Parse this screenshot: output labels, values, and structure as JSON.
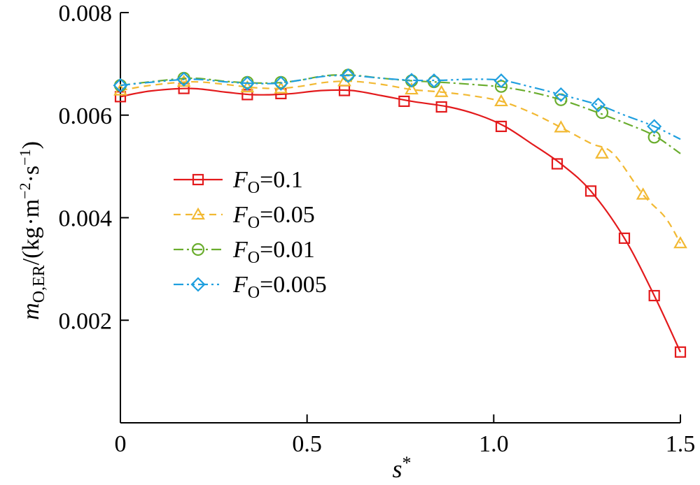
{
  "chart_data": {
    "type": "line",
    "xlabel": {
      "main": "s",
      "sup": "*"
    },
    "ylabel": {
      "main": "m",
      "sub": "O,ER",
      "unit_prefix": "/(kg",
      "m": "m",
      "exp1": "−2",
      "s": "s",
      "exp2": "−1",
      "close": ")"
    },
    "xlim": [
      0,
      1.5
    ],
    "ylim": [
      0,
      0.008
    ],
    "x_ticks": [
      0,
      0.5,
      1.0,
      1.5
    ],
    "x_tick_labels": [
      "0",
      "0.5",
      "1.0",
      "1.5"
    ],
    "y_ticks": [
      0.002,
      0.004,
      0.006,
      0.008
    ],
    "y_tick_labels": [
      "0.002",
      "0.004",
      "0.006",
      "0.008"
    ],
    "legend": {
      "placement": "center-left",
      "symbol": "F",
      "subscript": "O"
    },
    "series": [
      {
        "name": "=0.1",
        "color": "#e31a1c",
        "marker": "square",
        "dash": "solid",
        "curve_x": [
          0.0,
          0.08,
          0.19,
          0.28,
          0.35,
          0.41,
          0.46,
          0.54,
          0.62,
          0.7,
          0.78,
          0.88,
          0.96,
          1.03,
          1.1,
          1.18,
          1.26,
          1.35,
          1.43,
          1.5
        ],
        "curve_y": [
          0.00636,
          0.00647,
          0.00652,
          0.00645,
          0.0064,
          0.0064,
          0.00642,
          0.00648,
          0.00648,
          0.00638,
          0.00627,
          0.00616,
          0.006,
          0.00578,
          0.00545,
          0.00505,
          0.00452,
          0.0036,
          0.00248,
          0.00138
        ],
        "marker_x": [
          0.0,
          0.17,
          0.34,
          0.43,
          0.6,
          0.76,
          0.86,
          1.02,
          1.17,
          1.26,
          1.35,
          1.43,
          1.5
        ],
        "marker_y": [
          0.00636,
          0.00652,
          0.0064,
          0.00642,
          0.00648,
          0.00627,
          0.00616,
          0.00578,
          0.00505,
          0.00452,
          0.0036,
          0.00248,
          0.00138
        ]
      },
      {
        "name": "=0.05",
        "color": "#f2b933",
        "marker": "triangle",
        "dash": "10 7",
        "curve_x": [
          0.0,
          0.08,
          0.19,
          0.28,
          0.35,
          0.42,
          0.48,
          0.55,
          0.62,
          0.7,
          0.78,
          0.86,
          0.94,
          1.02,
          1.1,
          1.18,
          1.26,
          1.32,
          1.4,
          1.46,
          1.5
        ],
        "curve_y": [
          0.00648,
          0.00658,
          0.00665,
          0.0066,
          0.00654,
          0.00652,
          0.00656,
          0.00664,
          0.00666,
          0.0066,
          0.0065,
          0.00645,
          0.00638,
          0.00627,
          0.00605,
          0.00576,
          0.00545,
          0.00525,
          0.00445,
          0.004,
          0.0035
        ],
        "marker_x": [
          0.0,
          0.17,
          0.34,
          0.43,
          0.6,
          0.78,
          0.86,
          1.02,
          1.18,
          1.29,
          1.4,
          1.5
        ],
        "marker_y": [
          0.00648,
          0.00665,
          0.00654,
          0.00652,
          0.00666,
          0.0065,
          0.00645,
          0.00627,
          0.00576,
          0.00525,
          0.00445,
          0.0035
        ]
      },
      {
        "name": "=0.01",
        "color": "#6aad2e",
        "marker": "circle",
        "dash": "14 5 3 5",
        "curve_x": [
          0.0,
          0.08,
          0.19,
          0.28,
          0.35,
          0.42,
          0.48,
          0.55,
          0.62,
          0.7,
          0.78,
          0.86,
          0.94,
          1.02,
          1.1,
          1.18,
          1.26,
          1.35,
          1.43,
          1.5
        ],
        "curve_y": [
          0.00658,
          0.00665,
          0.00672,
          0.00666,
          0.00663,
          0.00663,
          0.00668,
          0.00677,
          0.00678,
          0.00672,
          0.00667,
          0.00664,
          0.0066,
          0.00655,
          0.00645,
          0.0063,
          0.0061,
          0.00585,
          0.0056,
          0.00525
        ],
        "marker_x": [
          0.0,
          0.17,
          0.34,
          0.43,
          0.61,
          0.78,
          0.84,
          1.02,
          1.18,
          1.29,
          1.43
        ],
        "marker_y": [
          0.00658,
          0.00672,
          0.00664,
          0.00664,
          0.00678,
          0.00667,
          0.00665,
          0.00656,
          0.0063,
          0.00605,
          0.00557
        ]
      },
      {
        "name": "=0.005",
        "color": "#1f9fdf",
        "marker": "diamond",
        "dash": "14 5 3 5 3 5",
        "curve_x": [
          0.0,
          0.08,
          0.19,
          0.28,
          0.35,
          0.42,
          0.48,
          0.55,
          0.62,
          0.7,
          0.78,
          0.86,
          0.94,
          1.02,
          1.1,
          1.18,
          1.28,
          1.35,
          1.43,
          1.5
        ],
        "curve_y": [
          0.00658,
          0.00664,
          0.0067,
          0.00665,
          0.00662,
          0.00662,
          0.00668,
          0.00676,
          0.00677,
          0.00672,
          0.00668,
          0.00668,
          0.0067,
          0.00668,
          0.00655,
          0.0064,
          0.0062,
          0.006,
          0.00578,
          0.00553
        ],
        "marker_x": [
          0.0,
          0.17,
          0.34,
          0.43,
          0.61,
          0.78,
          0.84,
          1.02,
          1.18,
          1.28,
          1.43
        ],
        "marker_y": [
          0.00658,
          0.0067,
          0.00662,
          0.00662,
          0.00677,
          0.00668,
          0.00667,
          0.00667,
          0.0064,
          0.0062,
          0.00578
        ]
      }
    ]
  }
}
